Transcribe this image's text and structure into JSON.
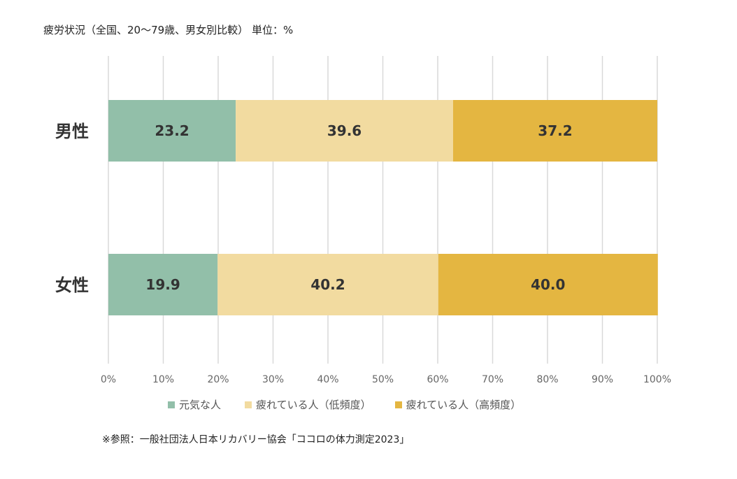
{
  "header": {
    "title": "疲労状況（全国、20～79歳、男女別比較） 単位：%"
  },
  "footer": {
    "source": "※参照：一般社団法人日本リカバリー協会「ココロの体力測定2023」"
  },
  "colors": {
    "genki": "#92bfa9",
    "low": "#f2dba0",
    "high": "#e4b641",
    "grid": "#d9d9d9",
    "label": "#333333"
  },
  "chart_data": {
    "type": "bar",
    "orientation": "horizontal",
    "stacked": "100%",
    "categories": [
      "男性",
      "女性"
    ],
    "series": [
      {
        "name": "元気な人",
        "values": [
          23.2,
          19.9
        ]
      },
      {
        "name": "疲れている人（低頻度）",
        "values": [
          39.6,
          40.2
        ]
      },
      {
        "name": "疲れている人（高頻度）",
        "values": [
          37.2,
          40.0
        ]
      }
    ],
    "xlim": [
      0,
      100
    ],
    "xticks": [
      "0%",
      "10%",
      "20%",
      "30%",
      "40%",
      "50%",
      "60%",
      "70%",
      "80%",
      "90%",
      "100%"
    ],
    "grid": "vertical",
    "legend_position": "bottom"
  }
}
